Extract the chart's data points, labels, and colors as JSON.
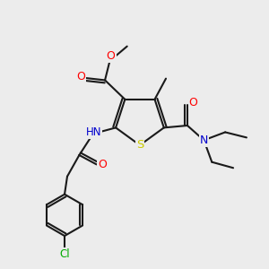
{
  "bg_color": "#ececec",
  "bond_color": "#1a1a1a",
  "bond_width": 1.5,
  "atom_colors": {
    "O": "#ff0000",
    "N": "#0000cd",
    "S": "#cccc00",
    "Cl": "#00aa00",
    "C": "#1a1a1a",
    "H": "#6e8b8b"
  },
  "figsize": [
    3.0,
    3.0
  ],
  "dpi": 100
}
